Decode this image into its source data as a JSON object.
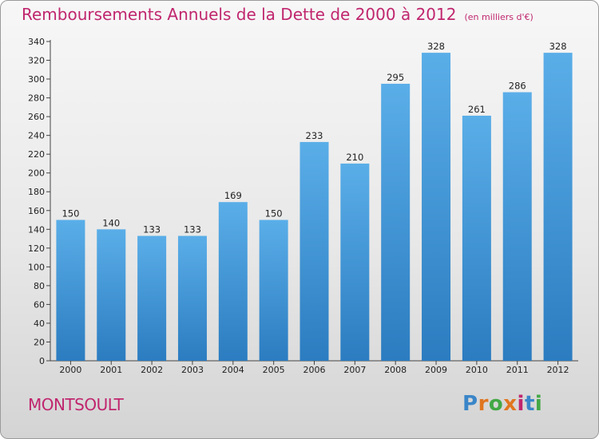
{
  "header": {
    "title": "Remboursements Annuels de la Dette de 2000 à 2012",
    "unit": "(en milliers d'€)"
  },
  "footer": {
    "commune": "MONTSOULT",
    "logo_letters": [
      "P",
      "r",
      "o",
      "x",
      "i",
      "t",
      "i"
    ]
  },
  "colors": {
    "title": "#c0266e",
    "bar_top": "#5aaee8",
    "bar_bottom": "#2b7cc0",
    "logo": [
      "#3a86c8",
      "#e0761f",
      "#43a845",
      "#e0761f",
      "#c0266e",
      "#3a86c8",
      "#43a845"
    ]
  },
  "chart_data": {
    "type": "bar",
    "title": "Remboursements Annuels de la Dette de 2000 à 2012",
    "subtitle": "(en milliers d'€)",
    "categories": [
      "2000",
      "2001",
      "2002",
      "2003",
      "2004",
      "2005",
      "2006",
      "2007",
      "2008",
      "2009",
      "2010",
      "2011",
      "2012"
    ],
    "values": [
      150,
      140,
      133,
      133,
      169,
      150,
      233,
      210,
      295,
      328,
      261,
      286,
      328
    ],
    "ylim": [
      0,
      340
    ],
    "ytick_step": 20,
    "grid": false,
    "legend": "none"
  }
}
